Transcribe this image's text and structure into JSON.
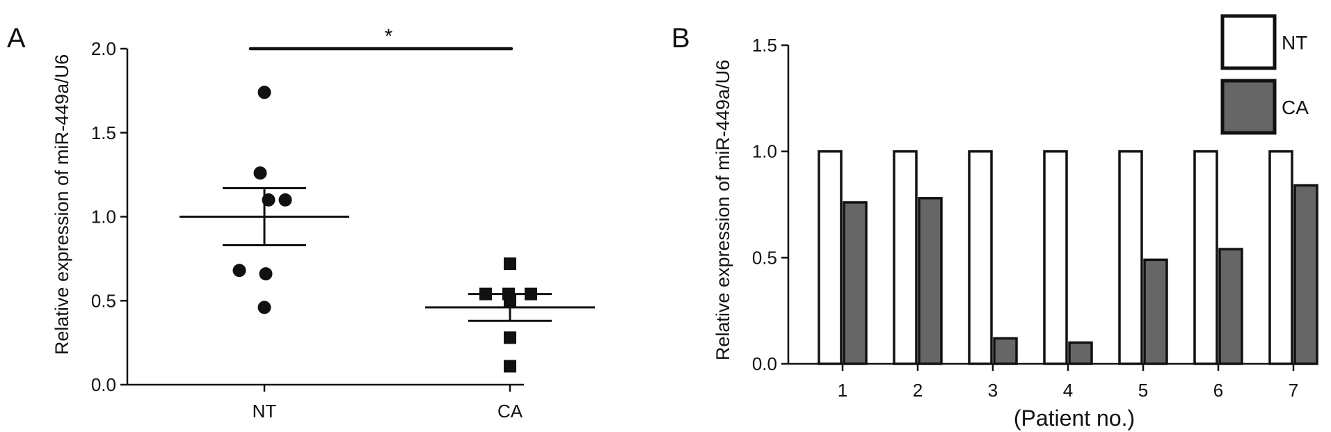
{
  "chart_data": [
    {
      "panel": "A",
      "type": "scatter",
      "ylabel": "Relative expression of miR-449a/U6",
      "ylim": [
        0,
        2.0
      ],
      "yticks": [
        "0.0",
        "0.5",
        "1.0",
        "1.5",
        "2.0"
      ],
      "categories": [
        "NT",
        "CA"
      ],
      "series": [
        {
          "name": "NT",
          "marker": "circle",
          "values": [
            1.74,
            1.26,
            1.1,
            1.1,
            0.68,
            0.66,
            0.46
          ],
          "mean": 1.0,
          "sem": 0.17
        },
        {
          "name": "CA",
          "marker": "square",
          "values": [
            0.72,
            0.54,
            0.54,
            0.54,
            0.5,
            0.28,
            0.11
          ],
          "mean": 0.46,
          "sem": 0.08
        }
      ],
      "significance": {
        "between": [
          "NT",
          "CA"
        ],
        "label": "*",
        "y": 2.0
      }
    },
    {
      "panel": "B",
      "type": "bar",
      "ylabel": "Relative expression of miR-449a/U6",
      "xlabel": "(Patient no.)",
      "ylim": [
        0,
        1.5
      ],
      "yticks": [
        "0.0",
        "0.5",
        "1.0",
        "1.5"
      ],
      "categories": [
        "1",
        "2",
        "3",
        "4",
        "5",
        "6",
        "7"
      ],
      "series": [
        {
          "name": "NT",
          "color": "#ffffff",
          "values": [
            1.0,
            1.0,
            1.0,
            1.0,
            1.0,
            1.0,
            1.0
          ]
        },
        {
          "name": "CA",
          "color": "#666666",
          "values": [
            0.76,
            0.78,
            0.12,
            0.1,
            0.49,
            0.54,
            0.84
          ]
        }
      ],
      "legend": "top-right"
    }
  ]
}
